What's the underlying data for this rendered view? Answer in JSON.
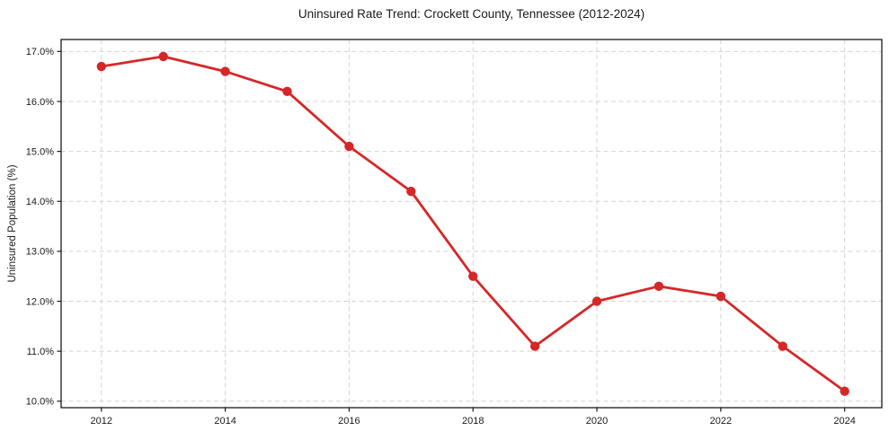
{
  "chart_data": {
    "type": "line",
    "title": "Uninsured Rate Trend: Crockett County, Tennessee (2012-2024)",
    "xlabel": "",
    "ylabel": "Uninsured Population (%)",
    "x": [
      2012,
      2013,
      2014,
      2015,
      2016,
      2017,
      2018,
      2019,
      2020,
      2021,
      2022,
      2023,
      2024
    ],
    "values": [
      16.7,
      16.9,
      16.6,
      16.2,
      15.1,
      14.2,
      12.5,
      11.1,
      12.0,
      12.3,
      12.1,
      11.1,
      10.2
    ],
    "xticks": [
      2012,
      2014,
      2016,
      2018,
      2020,
      2022,
      2024
    ],
    "xtick_labels": [
      "2012",
      "2014",
      "2016",
      "2018",
      "2020",
      "2022",
      "2024"
    ],
    "yticks": [
      10,
      11,
      12,
      13,
      14,
      15,
      16,
      17
    ],
    "ytick_labels": [
      "10.0%",
      "11.0%",
      "12.0%",
      "13.0%",
      "14.0%",
      "15.0%",
      "16.0%",
      "17.0%"
    ],
    "xlim": [
      2011.35,
      2024.6
    ],
    "ylim": [
      9.87,
      17.24
    ],
    "grid": true,
    "legend": "none",
    "line_color": "#d62728",
    "marker": "circle",
    "grid_color": "#d4d4d4",
    "text_color": "#1a1a1a",
    "background_color": "#ffffff"
  }
}
